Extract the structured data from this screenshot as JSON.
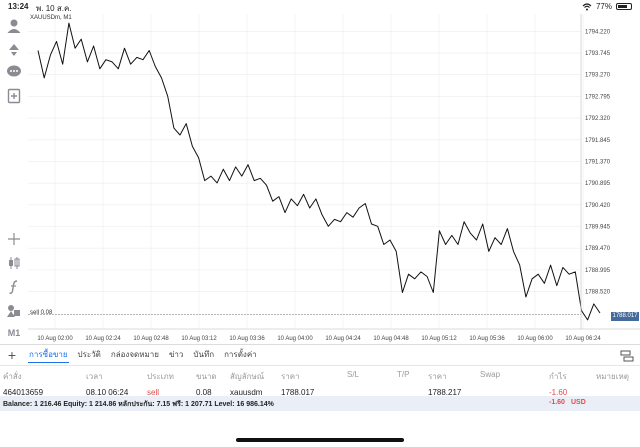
{
  "status_bar": {
    "time": "13:24",
    "date": "พ. 10 ส.ค.",
    "battery": "77%",
    "battery_level": 0.77
  },
  "toolbar": {
    "timeframe": "M1"
  },
  "chart": {
    "symbol_label": "XAUUSDm, M1",
    "sell_label": "sell 0.08",
    "last_price": "1788.017",
    "line_color": "#111111",
    "grid_color": "#ececec",
    "tag_color": "#456b9a"
  },
  "chart_data": {
    "type": "line",
    "title": "XAUUSDm, M1",
    "x_ticks": [
      "10 Aug 02:00",
      "10 Aug 02:24",
      "10 Aug 02:48",
      "10 Aug 03:12",
      "10 Aug 03:36",
      "10 Aug 04:00",
      "10 Aug 04:24",
      "10 Aug 04:48",
      "10 Aug 05:12",
      "10 Aug 05:36",
      "10 Aug 06:00",
      "10 Aug 06:24"
    ],
    "y_ticks": [
      "1794.220",
      "1793.745",
      "1793.270",
      "1792.795",
      "1792.320",
      "1791.845",
      "1791.370",
      "1790.895",
      "1790.420",
      "1789.945",
      "1789.470",
      "1788.995",
      "1788.520"
    ],
    "ylim": [
      1787.7,
      1794.6
    ],
    "ref_line": 1788.017,
    "series": [
      {
        "values": [
          1793.8,
          1793.2,
          1793.7,
          1794.0,
          1793.5,
          1794.4,
          1793.85,
          1794.05,
          1793.55,
          1793.9,
          1793.4,
          1793.6,
          1793.55,
          1793.4,
          1793.85,
          1793.5,
          1793.65,
          1793.6,
          1793.8,
          1793.45,
          1793.2,
          1792.8,
          1792.1,
          1791.95,
          1792.2,
          1791.7,
          1791.45,
          1790.95,
          1791.05,
          1790.9,
          1791.2,
          1790.95,
          1791.25,
          1791.05,
          1791.3,
          1790.95,
          1791.0,
          1790.85,
          1790.5,
          1790.6,
          1790.25,
          1790.55,
          1790.4,
          1790.65,
          1790.35,
          1790.55,
          1790.2,
          1789.95,
          1790.1,
          1790.05,
          1790.25,
          1790.15,
          1790.35,
          1790.45,
          1790.0,
          1789.95,
          1789.55,
          1789.65,
          1789.4,
          1788.5,
          1788.9,
          1788.8,
          1788.95,
          1788.85,
          1788.5,
          1789.85,
          1789.55,
          1789.75,
          1789.55,
          1790.05,
          1789.8,
          1789.65,
          1790.0,
          1789.4,
          1789.7,
          1789.55,
          1789.9,
          1789.4,
          1789.1,
          1788.4,
          1788.8,
          1788.9,
          1788.7,
          1789.1,
          1788.65,
          1789.05,
          1788.9,
          1788.95,
          1788.1,
          1787.9,
          1788.25,
          1788.05
        ]
      }
    ],
    "grid": true,
    "legend": "none"
  },
  "tabs": [
    {
      "label": "การซื้อขาย",
      "active": true
    },
    {
      "label": "ประวัติ",
      "active": false
    },
    {
      "label": "กล่องจดหมาย",
      "active": false
    },
    {
      "label": "ข่าว",
      "active": false
    },
    {
      "label": "บันทึก",
      "active": false
    },
    {
      "label": "การตั้งค่า",
      "active": false
    }
  ],
  "positions": {
    "headers": {
      "ticket": "คำสั่ง",
      "time": "เวลา",
      "type": "ประเภท",
      "volume": "ขนาด",
      "symbol": "สัญลักษณ์",
      "price": "ราคา",
      "sl": "S/L",
      "tp": "T/P",
      "current": "ราคา",
      "swap": "Swap",
      "profit": "กำไร",
      "comment": "หมายเหตุ"
    },
    "rows": [
      {
        "ticket": "464013659",
        "time": "08.10 06:24",
        "type": "sell",
        "volume": "0.08",
        "symbol": "xauusdm",
        "price": "1788.017",
        "sl": "",
        "tp": "",
        "current": "1788.217",
        "swap": "",
        "profit": "-1.60",
        "comment": ""
      }
    ]
  },
  "balance": {
    "summary": "Balance: 1 216.46 Equity: 1 214.86 หลักประกัน: 7.15 ฟรี: 1 207.71 Level: 16 986.14%",
    "total": "-1.60",
    "currency": "USD"
  }
}
